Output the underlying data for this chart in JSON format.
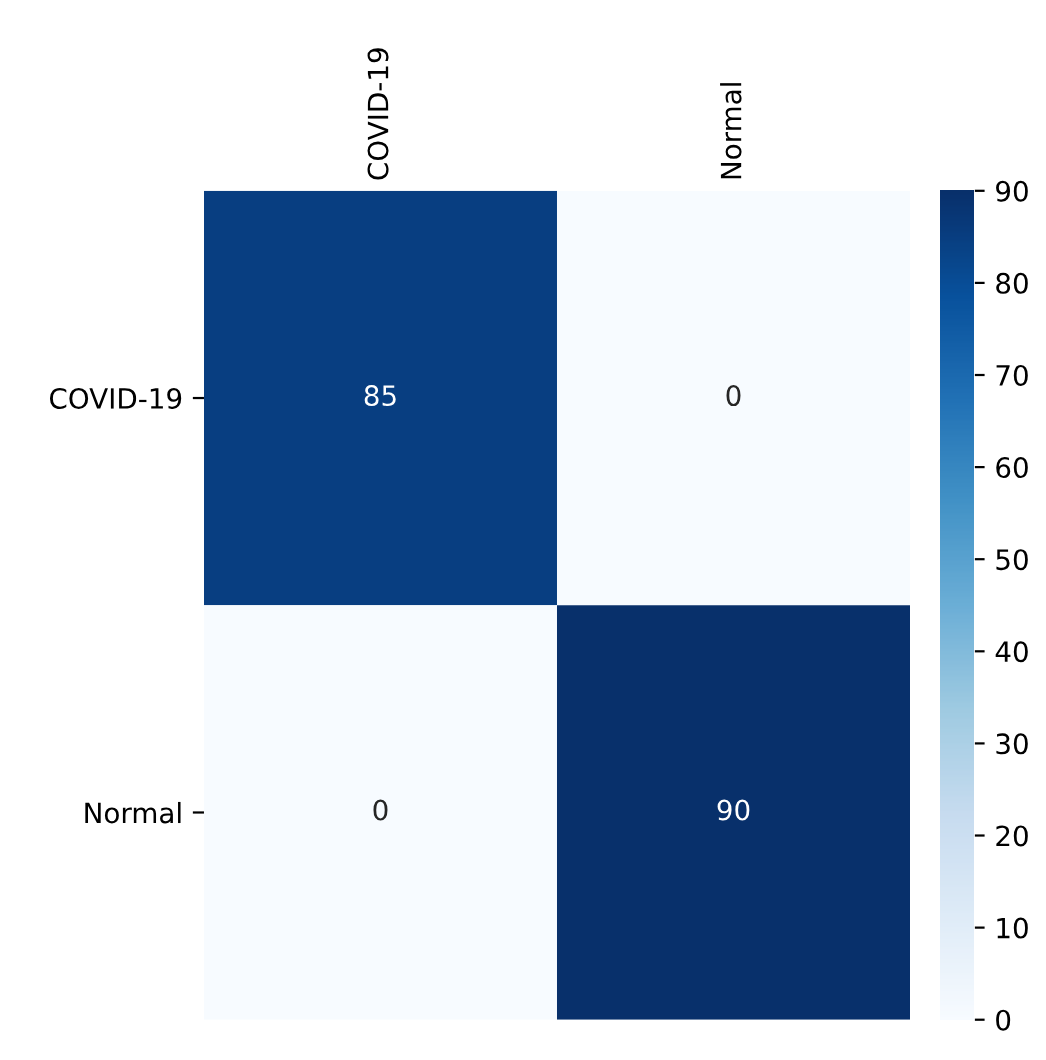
{
  "chart_data": {
    "type": "heatmap",
    "categories": [
      "COVID-19",
      "Normal"
    ],
    "y_categories": [
      "COVID-19",
      "Normal"
    ],
    "cells": [
      [
        85,
        0
      ],
      [
        0,
        90
      ]
    ],
    "data_labels": true,
    "clim": [
      0,
      90
    ],
    "cticks": [
      0,
      10,
      20,
      30,
      40,
      50,
      60,
      70,
      80,
      90
    ]
  }
}
